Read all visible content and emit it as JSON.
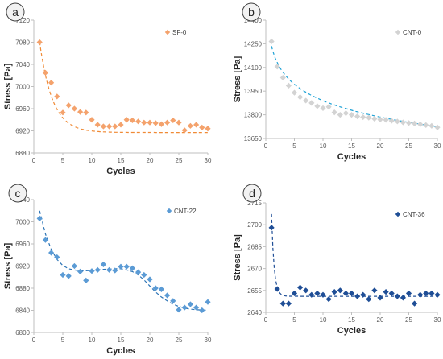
{
  "chart_data": [
    {
      "type": "scatter",
      "panel_label": "a",
      "xlabel": "Cycles",
      "ylabel": "Stress [Pa]",
      "xlim": [
        0,
        30
      ],
      "ylim": [
        6880,
        7120
      ],
      "xticks": [
        "0",
        "5",
        "10",
        "15",
        "20",
        "25",
        "30"
      ],
      "yticks": [
        "6880",
        "6920",
        "6960",
        "7000",
        "7040",
        "7080",
        "7120"
      ],
      "legend": "top-right",
      "grid": false,
      "series": [
        {
          "name": "SF-0",
          "color": "#F4A26C",
          "fit_color": "#F08A35",
          "marker": "diamond",
          "x": [
            1,
            2,
            3,
            4,
            5,
            6,
            7,
            8,
            9,
            10,
            11,
            12,
            13,
            14,
            15,
            16,
            17,
            18,
            19,
            20,
            21,
            22,
            23,
            24,
            25,
            26,
            27,
            28,
            29,
            30
          ],
          "y": [
            7080,
            7025,
            7007,
            6982,
            6953,
            6966,
            6960,
            6954,
            6953,
            6940,
            6931,
            6928,
            6928,
            6928,
            6931,
            6940,
            6939,
            6937,
            6935,
            6935,
            6934,
            6932,
            6935,
            6939,
            6935,
            6921,
            6929,
            6931,
            6926,
            6924
          ],
          "fit": {
            "a": 150,
            "b": 6917,
            "tau": 2.2
          }
        }
      ]
    },
    {
      "type": "scatter",
      "panel_label": "b",
      "xlabel": "Cycles",
      "ylabel": "Stress [Pa]",
      "xlim": [
        0,
        30
      ],
      "ylim": [
        13650,
        14400
      ],
      "xticks": [
        "0",
        "5",
        "10",
        "15",
        "20",
        "25",
        "30"
      ],
      "yticks": [
        "13650",
        "13800",
        "13950",
        "14100",
        "14250",
        "14400"
      ],
      "legend": "top-right",
      "grid": false,
      "series": [
        {
          "name": "CNT-0",
          "color": "#D3D3D3",
          "fit_color": "#1FA2D6",
          "marker": "diamond",
          "x": [
            1,
            2,
            3,
            4,
            5,
            6,
            7,
            8,
            9,
            10,
            11,
            12,
            13,
            14,
            15,
            16,
            17,
            18,
            19,
            20,
            21,
            22,
            23,
            24,
            25,
            26,
            27,
            28,
            29,
            30
          ],
          "y": [
            14265,
            14105,
            14035,
            13985,
            13940,
            13912,
            13890,
            13875,
            13855,
            13842,
            13850,
            13815,
            13800,
            13810,
            13800,
            13790,
            13785,
            13782,
            13775,
            13770,
            13768,
            13762,
            13758,
            13752,
            13748,
            13745,
            13740,
            13735,
            13730,
            13720
          ],
          "fit": {
            "a": 14235,
            "b": -150,
            "c": "ln"
          }
        }
      ]
    },
    {
      "type": "scatter",
      "panel_label": "c",
      "xlabel": "Cycles",
      "ylabel": "Stress [Pa]",
      "xlim": [
        0,
        30
      ],
      "ylim": [
        6800,
        7040
      ],
      "xticks": [
        "0",
        "5",
        "10",
        "15",
        "20",
        "25",
        "30"
      ],
      "yticks": [
        "6800",
        "6840",
        "6880",
        "6920",
        "6960",
        "7000",
        "7040"
      ],
      "legend": "top-right",
      "grid": false,
      "series": [
        {
          "name": "CNT-22",
          "color": "#5B9BD5",
          "fit_color": "#2E75B6",
          "marker": "diamond",
          "x": [
            1,
            2,
            3,
            4,
            5,
            6,
            7,
            8,
            9,
            10,
            11,
            12,
            13,
            14,
            15,
            16,
            17,
            18,
            19,
            20,
            21,
            22,
            23,
            24,
            25,
            26,
            27,
            28,
            29,
            30
          ],
          "y": [
            7006,
            6967,
            6944,
            6936,
            6904,
            6902,
            6920,
            6910,
            6894,
            6911,
            6913,
            6923,
            6913,
            6912,
            6919,
            6919,
            6916,
            6909,
            6904,
            6896,
            6880,
            6878,
            6867,
            6857,
            6841,
            6845,
            6851,
            6845,
            6840,
            6855
          ],
          "fit_curve": [
            [
              1,
              7020
            ],
            [
              2,
              6978
            ],
            [
              3,
              6950
            ],
            [
              4,
              6932
            ],
            [
              5,
              6921
            ],
            [
              6,
              6915
            ],
            [
              8,
              6911
            ],
            [
              10,
              6912
            ],
            [
              12,
              6914
            ],
            [
              14,
              6915
            ],
            [
              15,
              6915
            ],
            [
              16,
              6913
            ],
            [
              17,
              6910
            ],
            [
              18,
              6904
            ],
            [
              19,
              6895
            ],
            [
              20,
              6884
            ],
            [
              21,
              6873
            ],
            [
              22,
              6864
            ],
            [
              23,
              6857
            ],
            [
              24,
              6851
            ],
            [
              25,
              6847
            ],
            [
              26,
              6844
            ],
            [
              27,
              6842
            ],
            [
              28,
              6841
            ],
            [
              30,
              6840
            ]
          ]
        }
      ]
    },
    {
      "type": "scatter",
      "panel_label": "d",
      "xlabel": "Cycles",
      "ylabel": "Stress [Pa]",
      "xlim": [
        0,
        30
      ],
      "ylim": [
        2640,
        2715
      ],
      "xticks": [
        "0",
        "5",
        "10",
        "15",
        "20",
        "25",
        "30"
      ],
      "yticks": [
        "2640",
        "2655",
        "2670",
        "2685",
        "2700",
        "2715"
      ],
      "legend": "top-right",
      "grid": false,
      "series": [
        {
          "name": "CNT-36",
          "color": "#1F4E96",
          "fit_color": "#1F4E96",
          "marker": "diamond",
          "x": [
            1,
            2,
            3,
            4,
            5,
            6,
            7,
            8,
            9,
            10,
            11,
            12,
            13,
            14,
            15,
            16,
            17,
            18,
            19,
            20,
            21,
            22,
            23,
            24,
            25,
            26,
            27,
            28,
            29,
            30
          ],
          "y": [
            2698,
            2656,
            2646,
            2646,
            2653,
            2657,
            2655,
            2652,
            2653,
            2652,
            2649,
            2654,
            2655,
            2653,
            2653,
            2651,
            2652,
            2649,
            2655,
            2650,
            2654,
            2653,
            2651,
            2650,
            2653,
            2646,
            2652,
            2653,
            2653,
            2652
          ],
          "fit": {
            "a": 2651,
            "amp": 520,
            "tau": 0.45
          }
        }
      ]
    }
  ],
  "colors": {
    "axis": "#BFBFBF",
    "badge_fill": "#F2F2F2",
    "badge_stroke": "#404040"
  }
}
